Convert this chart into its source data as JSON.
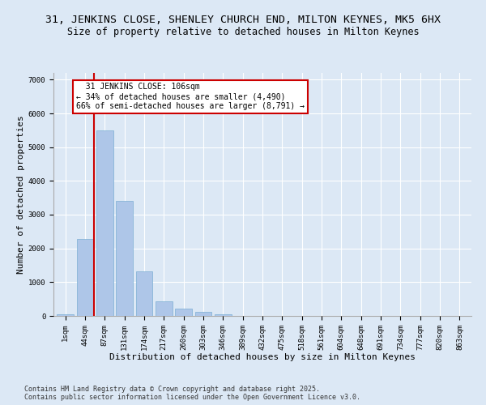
{
  "title_line1": "31, JENKINS CLOSE, SHENLEY CHURCH END, MILTON KEYNES, MK5 6HX",
  "title_line2": "Size of property relative to detached houses in Milton Keynes",
  "xlabel": "Distribution of detached houses by size in Milton Keynes",
  "ylabel": "Number of detached properties",
  "categories": [
    "1sqm",
    "44sqm",
    "87sqm",
    "131sqm",
    "174sqm",
    "217sqm",
    "260sqm",
    "303sqm",
    "346sqm",
    "389sqm",
    "432sqm",
    "475sqm",
    "518sqm",
    "561sqm",
    "604sqm",
    "648sqm",
    "691sqm",
    "734sqm",
    "777sqm",
    "820sqm",
    "863sqm"
  ],
  "values": [
    50,
    2280,
    5500,
    3400,
    1320,
    430,
    210,
    130,
    60,
    10,
    0,
    0,
    0,
    0,
    0,
    0,
    0,
    0,
    0,
    0,
    0
  ],
  "bar_color": "#aec6e8",
  "bar_edge_color": "#7bafd4",
  "vline_x_index": 1.45,
  "property_label": "31 JENKINS CLOSE: 106sqm",
  "pct_smaller": 34,
  "pct_smaller_count": "4,490",
  "pct_larger": 66,
  "pct_larger_count": "8,791",
  "annotation_box_color": "#ffffff",
  "annotation_box_edge": "#cc0000",
  "vline_color": "#cc0000",
  "background_color": "#dce8f5",
  "grid_color": "#ffffff",
  "footnote": "Contains HM Land Registry data © Crown copyright and database right 2025.\nContains public sector information licensed under the Open Government Licence v3.0.",
  "ylim": [
    0,
    7200
  ],
  "title_fontsize": 9.5,
  "subtitle_fontsize": 8.5,
  "axis_label_fontsize": 8,
  "tick_fontsize": 6.5,
  "annotation_fontsize": 7,
  "footnote_fontsize": 6
}
